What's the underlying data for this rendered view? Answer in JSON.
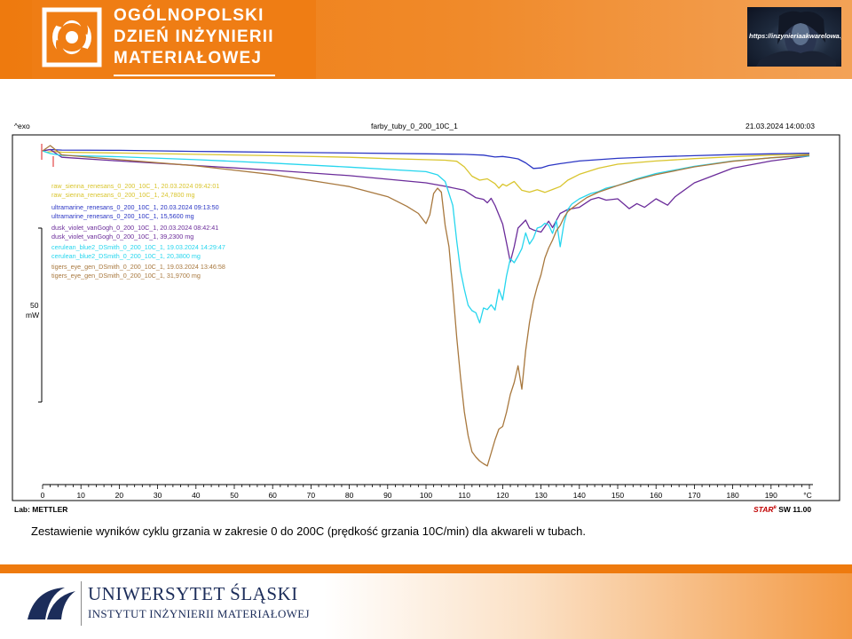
{
  "header": {
    "conference_lines": [
      "OGÓLNOPOLSKI",
      "DZIEŃ INŻYNIERII",
      "MATERIAŁOWEJ"
    ],
    "corner_image_url": "https://inzynieriaakwarelowa.pl"
  },
  "chart_header": {
    "exo_label": "^exo",
    "title": "farby_tuby_0_200_10C_1",
    "datetime": "21.03.2024 14:00:03",
    "lab_label": "Lab: METTLER",
    "software_brand": "STAR",
    "software_version": "SW 11.00"
  },
  "chart_data": {
    "type": "line",
    "title": "farby_tuby_0_200_10C_1",
    "xlabel": "°C",
    "ylabel": "",
    "xlim": [
      0,
      200
    ],
    "x_ticks": [
      0,
      10,
      20,
      30,
      40,
      50,
      60,
      70,
      80,
      90,
      100,
      110,
      120,
      130,
      140,
      150,
      160,
      170,
      180,
      190
    ],
    "scale_bar": {
      "value": "50",
      "unit": "mW"
    },
    "legend_placement": "upper-left",
    "grid": false,
    "series": [
      {
        "name": "raw_sienna_renesans_0_200_10C_1",
        "label_line1": "raw_sienna_renesans_0_200_10C_1, 20.03.2024 09:42:01",
        "label_line2": "raw_sienna_renesans_0_200_10C_1, 24,7800 mg",
        "color": "#d9c52e",
        "x": [
          0,
          1,
          2,
          3,
          5,
          20,
          40,
          60,
          80,
          90,
          100,
          105,
          108,
          110,
          112,
          114,
          116,
          118,
          119,
          120,
          121,
          122,
          123,
          124,
          125,
          127,
          129,
          131,
          133,
          135,
          137,
          140,
          145,
          150,
          160,
          170,
          180,
          190,
          200
        ],
        "y": [
          0,
          0.5,
          0.3,
          0.2,
          0.5,
          0.8,
          1.3,
          1.8,
          2.4,
          2.9,
          3.3,
          3.5,
          3.9,
          6.0,
          9.5,
          11.0,
          10.5,
          12.3,
          14.0,
          12.5,
          13.2,
          12.3,
          11.5,
          13.2,
          14.8,
          15.5,
          14.6,
          15.6,
          14.5,
          13.4,
          11.0,
          8.8,
          6.5,
          5.0,
          3.8,
          2.9,
          2.2,
          1.6,
          1.3
        ]
      },
      {
        "name": "ultramarine_renesans_0_200_10C_1",
        "label_line1": "ultramarine_renesans_0_200_10C_1, 20.03.2024 09:13:50",
        "label_line2": "ultramarine_renesans_0_200_10C_1, 15,5600 mg",
        "color": "#2b36c4",
        "x": [
          0,
          2,
          5,
          20,
          40,
          60,
          80,
          100,
          110,
          115,
          118,
          120,
          122,
          124,
          126,
          128,
          130,
          132,
          135,
          140,
          150,
          160,
          170,
          180,
          190,
          200
        ],
        "y": [
          0,
          -0.5,
          -0.3,
          -0.2,
          0.2,
          0.5,
          0.8,
          1.1,
          1.3,
          1.6,
          2.3,
          2.1,
          2.5,
          3.0,
          4.5,
          6.6,
          6.4,
          5.5,
          4.8,
          3.8,
          2.8,
          2.2,
          1.8,
          1.4,
          1.1,
          0.9
        ]
      },
      {
        "name": "dusk_violet_vanGogh_0_200_10C_1",
        "label_line1": "dusk_violet_vanGogh_0_200_10C_1, 20.03.2024 08:42:41",
        "label_line2": "dusk_violet_vanGogh_0_200_10C_1, 39,2300 mg",
        "color": "#6b2c9a",
        "x": [
          0,
          2,
          5,
          20,
          40,
          60,
          80,
          100,
          105,
          110,
          113,
          115,
          116,
          117,
          118,
          119,
          120,
          121,
          122,
          123,
          124,
          125,
          126,
          127,
          128,
          130,
          132,
          133,
          135,
          137,
          140,
          143,
          145,
          147,
          150,
          153,
          155,
          157,
          160,
          163,
          165,
          170,
          180,
          190,
          200
        ],
        "y": [
          0,
          -0.5,
          2.4,
          3.8,
          5.5,
          7.3,
          9.3,
          12.0,
          13.3,
          14.8,
          17.6,
          18.2,
          19.5,
          17.8,
          20.5,
          24.0,
          27.5,
          34.5,
          41.7,
          36.0,
          29.0,
          27.5,
          26.0,
          29.0,
          29.7,
          30.5,
          26.4,
          28.8,
          23.5,
          22.0,
          21.2,
          18.3,
          17.5,
          18.5,
          18.0,
          21.7,
          19.8,
          21.2,
          18.0,
          20.4,
          17.2,
          12.0,
          6.5,
          3.8,
          1.9
        ]
      },
      {
        "name": "cerulean_blue2_DSmith_0_200_10C_1",
        "label_line1": "cerulean_blue2_DSmith_0_200_10C_1, 19.03.2024 14:29:47",
        "label_line2": "cerulean_blue2_DSmith_0_200_10C_1, 20,3800 mg",
        "color": "#27d6ee",
        "x": [
          0,
          2,
          5,
          20,
          40,
          60,
          80,
          100,
          103,
          105,
          106,
          107,
          108,
          109,
          110,
          111,
          112,
          113,
          114,
          115,
          116,
          117,
          118,
          119,
          120,
          121,
          122,
          123,
          124,
          125,
          126,
          127,
          128,
          129,
          130,
          131,
          132,
          133,
          134,
          135,
          136,
          137,
          138,
          140,
          143,
          145,
          147,
          150,
          155,
          160,
          170,
          180,
          190,
          200
        ],
        "y": [
          0,
          1.0,
          1.7,
          2.2,
          3.3,
          4.6,
          6.1,
          7.8,
          9.0,
          11.5,
          16.0,
          20.5,
          33.8,
          45.0,
          52.0,
          58.0,
          60.0,
          60.8,
          64.6,
          59.0,
          59.6,
          57.8,
          59.8,
          52.0,
          56.0,
          47.0,
          40.5,
          42.0,
          39.5,
          36.7,
          30.8,
          35.0,
          32.8,
          29.0,
          28.5,
          27.2,
          27.8,
          31.0,
          26.2,
          36.0,
          27.2,
          22.0,
          20.0,
          18.0,
          16.0,
          15.3,
          14.0,
          13.0,
          10.5,
          8.5,
          5.8,
          3.8,
          2.6,
          1.9
        ]
      },
      {
        "name": "tigers_eye_gen_DSmith_0_200_10C_1",
        "label_line1": "tigers_eye_gen_DSmith_0_200_10C_1, 19.03.2024 13:46:58",
        "label_line2": "tigers_eye_gen_DSmith_0_200_10C_1, 31,9700 mg",
        "color": "#a8783e",
        "x": [
          0,
          2,
          5,
          20,
          40,
          60,
          80,
          90,
          95,
          98,
          100,
          101,
          102,
          103,
          104,
          105,
          106,
          107,
          108,
          109,
          110,
          111,
          112,
          113,
          114,
          115,
          116,
          117,
          118,
          119,
          120,
          121,
          122,
          123,
          124,
          125,
          126,
          127,
          128,
          129,
          130,
          131,
          132,
          133,
          134,
          135,
          136,
          137,
          138,
          140,
          142,
          145,
          150,
          155,
          160,
          170,
          180,
          190,
          200
        ],
        "y": [
          0,
          -2.0,
          1.5,
          3.3,
          5.6,
          8.9,
          13.4,
          17.2,
          20.8,
          23.5,
          27.3,
          24.0,
          16.0,
          14.0,
          15.5,
          28.0,
          36.0,
          52.0,
          70.0,
          85.0,
          98.0,
          107.0,
          113.0,
          115.0,
          116.5,
          117.5,
          118.3,
          113.5,
          108.5,
          104.5,
          103.5,
          98.2,
          91.5,
          87.0,
          80.7,
          89.5,
          75.0,
          64.5,
          56.5,
          51.0,
          46.5,
          40.3,
          36.5,
          33.5,
          30.0,
          28.0,
          25.0,
          22.8,
          21.6,
          19.5,
          17.5,
          15.5,
          13.0,
          10.8,
          8.9,
          6.0,
          3.9,
          2.6,
          1.6
        ]
      }
    ]
  },
  "caption": "Zestawienie wyników cyklu grzania w zakresie 0 do 200C (prędkość grzania 10C/min) dla akwareli w tubach.",
  "footer": {
    "university": "UNIWERSYTET ŚLĄSKI",
    "institute": "INSTYTUT INŻYNIERII MATERIAŁOWEJ"
  },
  "colors": {
    "brand_orange": "#ee7a0e",
    "university_navy": "#1c2d5a",
    "star_red": "#c00000"
  }
}
